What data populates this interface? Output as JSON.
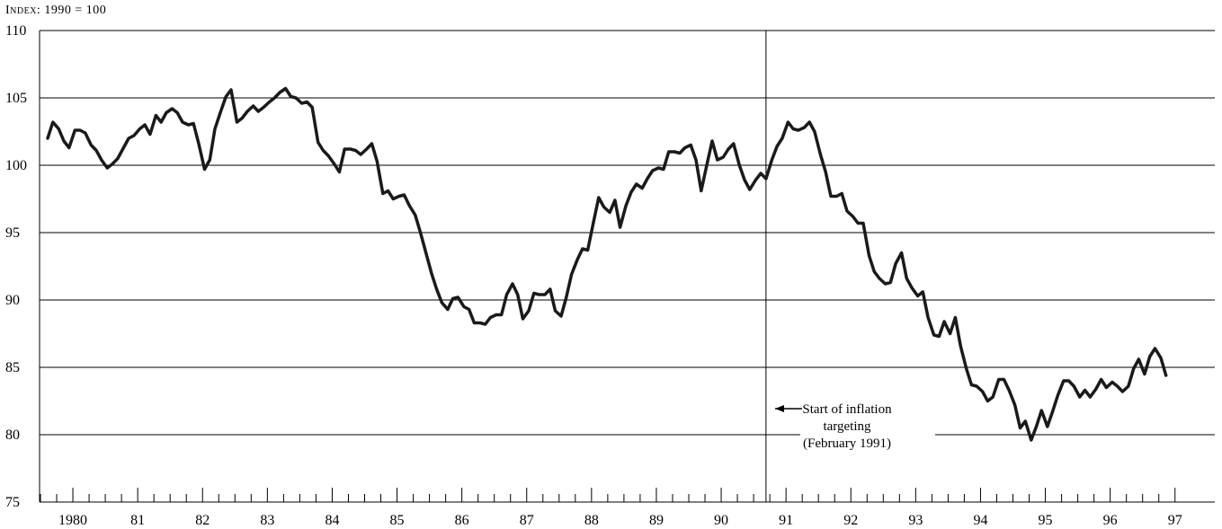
{
  "chart_data": {
    "type": "line",
    "ylabel": "Index: 1990 = 100",
    "ylim": [
      75,
      110
    ],
    "yticks": [
      75,
      80,
      85,
      90,
      95,
      100,
      105,
      110
    ],
    "xlim": [
      1980,
      1997.5
    ],
    "xticklabels": [
      {
        "year": 1980,
        "label": "1980"
      },
      {
        "year": 1981,
        "label": "81"
      },
      {
        "year": 1982,
        "label": "82"
      },
      {
        "year": 1983,
        "label": "83"
      },
      {
        "year": 1984,
        "label": "84"
      },
      {
        "year": 1985,
        "label": "85"
      },
      {
        "year": 1986,
        "label": "86"
      },
      {
        "year": 1987,
        "label": "87"
      },
      {
        "year": 1988,
        "label": "88"
      },
      {
        "year": 1989,
        "label": "89"
      },
      {
        "year": 1990,
        "label": "90"
      },
      {
        "year": 1991,
        "label": "91"
      },
      {
        "year": 1992,
        "label": "92"
      },
      {
        "year": 1993,
        "label": "93"
      },
      {
        "year": 1994,
        "label": "94"
      },
      {
        "year": 1995,
        "label": "95"
      },
      {
        "year": 1996,
        "label": "96"
      },
      {
        "year": 1997,
        "label": "97"
      }
    ],
    "grid": "horizontal",
    "series": [
      {
        "color": "#1a1a1a",
        "points": [
          [
            1980.0,
            102.0
          ],
          [
            1980.08,
            103.2
          ],
          [
            1980.17,
            102.7
          ],
          [
            1980.25,
            101.8
          ],
          [
            1980.33,
            101.3
          ],
          [
            1980.42,
            102.6
          ],
          [
            1980.5,
            102.6
          ],
          [
            1980.58,
            102.4
          ],
          [
            1980.67,
            101.5
          ],
          [
            1980.75,
            101.1
          ],
          [
            1980.83,
            100.4
          ],
          [
            1980.92,
            99.8
          ],
          [
            1981.0,
            100.1
          ],
          [
            1981.08,
            100.5
          ],
          [
            1981.17,
            101.3
          ],
          [
            1981.25,
            102.0
          ],
          [
            1981.33,
            102.2
          ],
          [
            1981.42,
            102.7
          ],
          [
            1981.5,
            103.0
          ],
          [
            1981.58,
            102.3
          ],
          [
            1981.67,
            103.7
          ],
          [
            1981.75,
            103.2
          ],
          [
            1981.83,
            103.9
          ],
          [
            1981.92,
            104.2
          ],
          [
            1982.0,
            103.9
          ],
          [
            1982.08,
            103.2
          ],
          [
            1982.17,
            103.0
          ],
          [
            1982.25,
            103.1
          ],
          [
            1982.33,
            101.6
          ],
          [
            1982.42,
            99.7
          ],
          [
            1982.5,
            100.4
          ],
          [
            1982.58,
            102.7
          ],
          [
            1982.67,
            104.0
          ],
          [
            1982.75,
            105.1
          ],
          [
            1982.83,
            105.6
          ],
          [
            1982.92,
            103.2
          ],
          [
            1983.0,
            103.5
          ],
          [
            1983.08,
            104.0
          ],
          [
            1983.17,
            104.4
          ],
          [
            1983.25,
            104.0
          ],
          [
            1983.33,
            104.3
          ],
          [
            1983.42,
            104.7
          ],
          [
            1983.5,
            105.0
          ],
          [
            1983.58,
            105.4
          ],
          [
            1983.67,
            105.7
          ],
          [
            1983.75,
            105.1
          ],
          [
            1983.83,
            105.0
          ],
          [
            1983.92,
            104.6
          ],
          [
            1984.0,
            104.7
          ],
          [
            1984.08,
            104.3
          ],
          [
            1984.17,
            101.7
          ],
          [
            1984.25,
            101.1
          ],
          [
            1984.33,
            100.7
          ],
          [
            1984.42,
            100.1
          ],
          [
            1984.5,
            99.5
          ],
          [
            1984.58,
            101.2
          ],
          [
            1984.67,
            101.2
          ],
          [
            1984.75,
            101.1
          ],
          [
            1984.83,
            100.8
          ],
          [
            1984.92,
            101.2
          ],
          [
            1985.0,
            101.6
          ],
          [
            1985.08,
            100.3
          ],
          [
            1985.17,
            97.9
          ],
          [
            1985.25,
            98.1
          ],
          [
            1985.33,
            97.5
          ],
          [
            1985.42,
            97.7
          ],
          [
            1985.5,
            97.8
          ],
          [
            1985.58,
            97.0
          ],
          [
            1985.67,
            96.3
          ],
          [
            1985.75,
            95.0
          ],
          [
            1985.83,
            93.6
          ],
          [
            1985.92,
            92.0
          ],
          [
            1986.0,
            90.8
          ],
          [
            1986.08,
            89.8
          ],
          [
            1986.17,
            89.3
          ],
          [
            1986.25,
            90.1
          ],
          [
            1986.33,
            90.2
          ],
          [
            1986.42,
            89.5
          ],
          [
            1986.5,
            89.3
          ],
          [
            1986.58,
            88.3
          ],
          [
            1986.67,
            88.3
          ],
          [
            1986.75,
            88.2
          ],
          [
            1986.83,
            88.7
          ],
          [
            1986.92,
            88.9
          ],
          [
            1987.0,
            88.9
          ],
          [
            1987.08,
            90.4
          ],
          [
            1987.17,
            91.2
          ],
          [
            1987.25,
            90.4
          ],
          [
            1987.33,
            88.6
          ],
          [
            1987.42,
            89.2
          ],
          [
            1987.5,
            90.5
          ],
          [
            1987.58,
            90.4
          ],
          [
            1987.67,
            90.4
          ],
          [
            1987.75,
            90.8
          ],
          [
            1987.83,
            89.2
          ],
          [
            1987.92,
            88.8
          ],
          [
            1988.0,
            90.2
          ],
          [
            1988.08,
            91.9
          ],
          [
            1988.17,
            93.0
          ],
          [
            1988.25,
            93.8
          ],
          [
            1988.33,
            93.7
          ],
          [
            1988.42,
            95.8
          ],
          [
            1988.5,
            97.6
          ],
          [
            1988.58,
            96.9
          ],
          [
            1988.67,
            96.5
          ],
          [
            1988.75,
            97.4
          ],
          [
            1988.83,
            95.4
          ],
          [
            1988.92,
            97.0
          ],
          [
            1989.0,
            98.0
          ],
          [
            1989.08,
            98.6
          ],
          [
            1989.17,
            98.3
          ],
          [
            1989.25,
            99.0
          ],
          [
            1989.33,
            99.6
          ],
          [
            1989.42,
            99.8
          ],
          [
            1989.5,
            99.7
          ],
          [
            1989.58,
            101.0
          ],
          [
            1989.67,
            101.0
          ],
          [
            1989.75,
            100.9
          ],
          [
            1989.83,
            101.3
          ],
          [
            1989.92,
            101.5
          ],
          [
            1990.0,
            100.4
          ],
          [
            1990.08,
            98.1
          ],
          [
            1990.17,
            100.1
          ],
          [
            1990.25,
            101.8
          ],
          [
            1990.33,
            100.4
          ],
          [
            1990.42,
            100.6
          ],
          [
            1990.5,
            101.2
          ],
          [
            1990.58,
            101.6
          ],
          [
            1990.67,
            100.0
          ],
          [
            1990.75,
            98.9
          ],
          [
            1990.83,
            98.2
          ],
          [
            1990.92,
            98.9
          ],
          [
            1991.0,
            99.4
          ],
          [
            1991.08,
            99.0
          ],
          [
            1991.17,
            100.4
          ],
          [
            1991.25,
            101.4
          ],
          [
            1991.33,
            102.0
          ],
          [
            1991.42,
            103.2
          ],
          [
            1991.5,
            102.7
          ],
          [
            1991.58,
            102.6
          ],
          [
            1991.67,
            102.8
          ],
          [
            1991.75,
            103.2
          ],
          [
            1991.83,
            102.5
          ],
          [
            1991.92,
            100.8
          ],
          [
            1992.0,
            99.5
          ],
          [
            1992.08,
            97.7
          ],
          [
            1992.17,
            97.7
          ],
          [
            1992.25,
            97.9
          ],
          [
            1992.33,
            96.6
          ],
          [
            1992.42,
            96.2
          ],
          [
            1992.5,
            95.7
          ],
          [
            1992.58,
            95.7
          ],
          [
            1992.67,
            93.3
          ],
          [
            1992.75,
            92.1
          ],
          [
            1992.83,
            91.6
          ],
          [
            1992.92,
            91.2
          ],
          [
            1993.0,
            91.3
          ],
          [
            1993.08,
            92.7
          ],
          [
            1993.17,
            93.5
          ],
          [
            1993.25,
            91.6
          ],
          [
            1993.33,
            90.9
          ],
          [
            1993.42,
            90.3
          ],
          [
            1993.5,
            90.6
          ],
          [
            1993.58,
            88.7
          ],
          [
            1993.67,
            87.4
          ],
          [
            1993.75,
            87.3
          ],
          [
            1993.83,
            88.4
          ],
          [
            1993.92,
            87.5
          ],
          [
            1994.0,
            88.7
          ],
          [
            1994.08,
            86.6
          ],
          [
            1994.17,
            84.9
          ],
          [
            1994.25,
            83.7
          ],
          [
            1994.33,
            83.6
          ],
          [
            1994.42,
            83.2
          ],
          [
            1994.5,
            82.5
          ],
          [
            1994.58,
            82.8
          ],
          [
            1994.67,
            84.1
          ],
          [
            1994.75,
            84.1
          ],
          [
            1994.83,
            83.3
          ],
          [
            1994.92,
            82.2
          ],
          [
            1995.0,
            80.5
          ],
          [
            1995.08,
            81.0
          ],
          [
            1995.17,
            79.6
          ],
          [
            1995.25,
            80.6
          ],
          [
            1995.33,
            81.8
          ],
          [
            1995.42,
            80.6
          ],
          [
            1995.5,
            81.7
          ],
          [
            1995.58,
            82.9
          ],
          [
            1995.67,
            84.0
          ],
          [
            1995.75,
            84.0
          ],
          [
            1995.83,
            83.6
          ],
          [
            1995.92,
            82.8
          ],
          [
            1996.0,
            83.3
          ],
          [
            1996.08,
            82.8
          ],
          [
            1996.17,
            83.4
          ],
          [
            1996.25,
            84.1
          ],
          [
            1996.33,
            83.5
          ],
          [
            1996.42,
            83.9
          ],
          [
            1996.5,
            83.6
          ],
          [
            1996.58,
            83.2
          ],
          [
            1996.67,
            83.6
          ],
          [
            1996.75,
            84.9
          ],
          [
            1996.83,
            85.6
          ],
          [
            1996.92,
            84.5
          ],
          [
            1997.0,
            85.8
          ],
          [
            1997.08,
            86.4
          ],
          [
            1997.17,
            85.7
          ],
          [
            1997.25,
            84.4
          ]
        ]
      }
    ],
    "vertical_marker": {
      "x": 1991.08
    },
    "annotation": {
      "lines": [
        "Start of inflation",
        "targeting",
        "(February 1991)"
      ],
      "arrow": "left"
    }
  }
}
